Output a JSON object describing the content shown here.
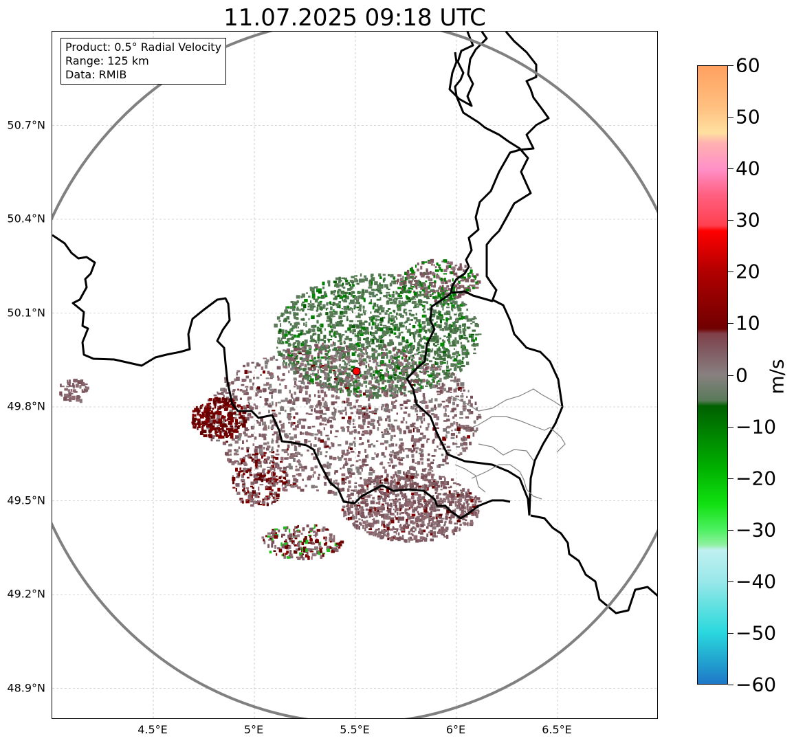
{
  "title": "11.07.2025 09:18 UTC",
  "info_box": {
    "line1": "Product: 0.5° Radial Velocity",
    "line2": "Range: 125 km",
    "line3": "Data: RMIB"
  },
  "map": {
    "lon_range": [
      4.0,
      7.0
    ],
    "lat_range": [
      48.8,
      51.0
    ],
    "lat_ticks": [
      {
        "value": 50.7,
        "label": "50.7°N"
      },
      {
        "value": 50.4,
        "label": "50.4°N"
      },
      {
        "value": 50.1,
        "label": "50.1°N"
      },
      {
        "value": 49.8,
        "label": "49.8°N"
      },
      {
        "value": 49.5,
        "label": "49.5°N"
      },
      {
        "value": 49.2,
        "label": "49.2°N"
      },
      {
        "value": 48.9,
        "label": "48.9°N"
      }
    ],
    "lon_ticks": [
      {
        "value": 4.5,
        "label": "4.5°E"
      },
      {
        "value": 5.0,
        "label": "5°E"
      },
      {
        "value": 5.5,
        "label": "5.5°E"
      },
      {
        "value": 6.0,
        "label": "6°E"
      },
      {
        "value": 6.5,
        "label": "6.5°E"
      }
    ],
    "radar_site": {
      "lon": 5.505,
      "lat": 49.914,
      "color": "#ff0000"
    },
    "range_ring_color": "#808080",
    "grid": true
  },
  "colorbar": {
    "unit": "m/s",
    "min": -60,
    "max": 60,
    "ticks": [
      {
        "value": 60,
        "label": "60"
      },
      {
        "value": 50,
        "label": "50"
      },
      {
        "value": 40,
        "label": "40"
      },
      {
        "value": 30,
        "label": "30"
      },
      {
        "value": 20,
        "label": "20"
      },
      {
        "value": 10,
        "label": "10"
      },
      {
        "value": 0,
        "label": "0"
      },
      {
        "value": -10,
        "label": "−10"
      },
      {
        "value": -20,
        "label": "−20"
      },
      {
        "value": -30,
        "label": "−30"
      },
      {
        "value": -40,
        "label": "−40"
      },
      {
        "value": -50,
        "label": "−50"
      },
      {
        "value": -60,
        "label": "−60"
      }
    ],
    "colors": [
      {
        "value": -60,
        "color": "#1f78c8"
      },
      {
        "value": -55,
        "color": "#22a8d0"
      },
      {
        "value": -50,
        "color": "#2ad8de"
      },
      {
        "value": -45,
        "color": "#60e0e0"
      },
      {
        "value": -40,
        "color": "#9ae8ea"
      },
      {
        "value": -34,
        "color": "#c0f0f0"
      },
      {
        "value": -33,
        "color": "#90f0a0"
      },
      {
        "value": -30,
        "color": "#4cf060"
      },
      {
        "value": -25,
        "color": "#10e010"
      },
      {
        "value": -18,
        "color": "#00b000"
      },
      {
        "value": -10,
        "color": "#007a00"
      },
      {
        "value": -6,
        "color": "#006000"
      },
      {
        "value": -5,
        "color": "#587a58"
      },
      {
        "value": 0,
        "color": "#888080"
      },
      {
        "value": 5,
        "color": "#805860"
      },
      {
        "value": 8,
        "color": "#804048"
      },
      {
        "value": 9,
        "color": "#700000"
      },
      {
        "value": 20,
        "color": "#b00000"
      },
      {
        "value": 28,
        "color": "#ff0000"
      },
      {
        "value": 29,
        "color": "#ff4050"
      },
      {
        "value": 35,
        "color": "#ff6080"
      },
      {
        "value": 40,
        "color": "#ff90c8"
      },
      {
        "value": 45,
        "color": "#ffb0b0"
      },
      {
        "value": 47,
        "color": "#ffe0a0"
      },
      {
        "value": 52,
        "color": "#ffc080"
      },
      {
        "value": 60,
        "color": "#ffa060"
      }
    ]
  }
}
